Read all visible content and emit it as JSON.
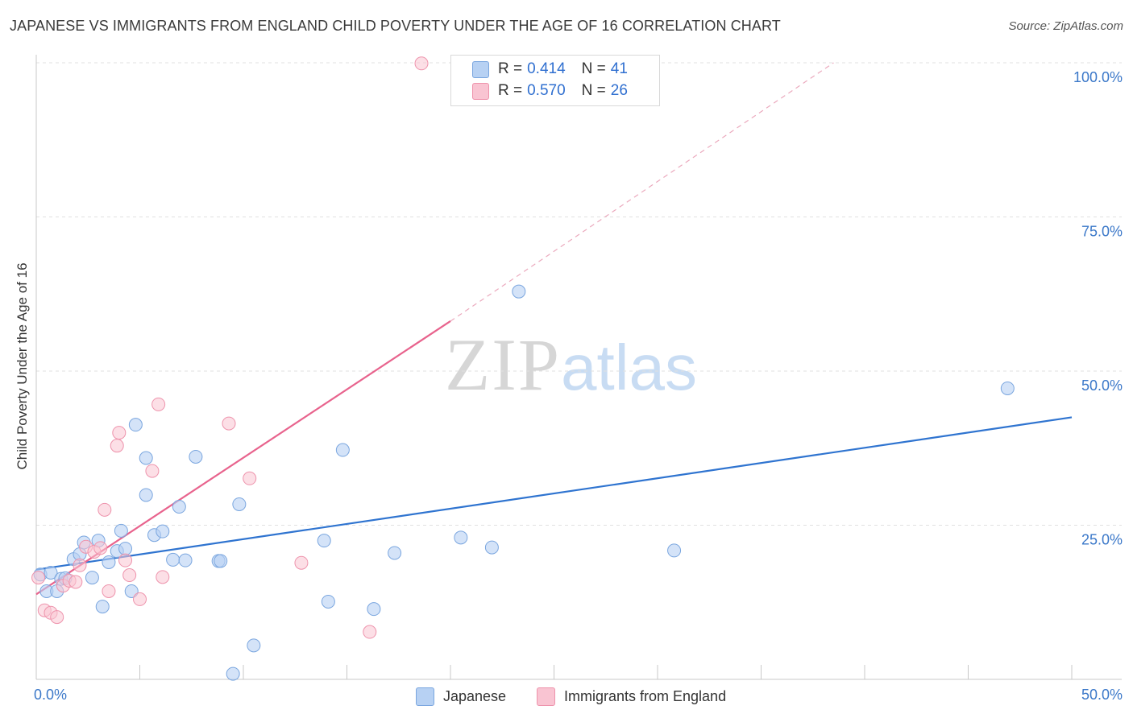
{
  "header": {
    "title": "JAPANESE VS IMMIGRANTS FROM ENGLAND CHILD POVERTY UNDER THE AGE OF 16 CORRELATION CHART",
    "source": "Source: ZipAtlas.com"
  },
  "watermark": {
    "zip": "ZIP",
    "atlas": "atlas"
  },
  "legend_top": {
    "rows": [
      {
        "r_label": "R = ",
        "r_value": "0.414",
        "n_label": "N = ",
        "n_value": "41"
      },
      {
        "r_label": "R = ",
        "r_value": "0.570",
        "n_label": "N = ",
        "n_value": "26"
      }
    ]
  },
  "legend_bottom": {
    "items": [
      "Japanese",
      "Immigrants from England"
    ]
  },
  "colors": {
    "japanese_fill": "#b7d1f3",
    "japanese_stroke": "#7aa6df",
    "japanese_line": "#2f74d0",
    "england_fill": "#f9c4d2",
    "england_stroke": "#ee93ac",
    "england_line": "#e8638d",
    "grid": "#e0e0e0",
    "axis_text": "#3b78c9"
  },
  "chart_data": {
    "type": "scatter",
    "title": "JAPANESE VS IMMIGRANTS FROM ENGLAND CHILD POVERTY UNDER THE AGE OF 16 CORRELATION CHART",
    "xlabel": "",
    "ylabel": "Child Poverty Under the Age of 16",
    "xlim": [
      0,
      50
    ],
    "ylim": [
      0,
      100
    ],
    "x_tick_labels": [
      "0.0%",
      "50.0%"
    ],
    "y_ticks": [
      25,
      50,
      75,
      100
    ],
    "y_tick_labels": [
      "25.0%",
      "50.0%",
      "75.0%",
      "100.0%"
    ],
    "grid": "horizontal dashed",
    "legend_position": "top-center",
    "series": [
      {
        "name": "Japanese",
        "R": 0.414,
        "N": 41,
        "trend": {
          "x": [
            0,
            50
          ],
          "y": [
            17.8,
            42.5
          ]
        },
        "points": [
          [
            0.2,
            17.0
          ],
          [
            0.5,
            14.3
          ],
          [
            0.7,
            17.3
          ],
          [
            1.0,
            14.3
          ],
          [
            1.2,
            16.3
          ],
          [
            1.4,
            16.4
          ],
          [
            1.8,
            19.5
          ],
          [
            2.1,
            20.3
          ],
          [
            2.3,
            22.2
          ],
          [
            2.7,
            16.5
          ],
          [
            3.0,
            22.5
          ],
          [
            3.2,
            11.8
          ],
          [
            3.5,
            19.0
          ],
          [
            3.9,
            20.8
          ],
          [
            4.1,
            24.1
          ],
          [
            4.3,
            21.2
          ],
          [
            4.6,
            14.3
          ],
          [
            4.8,
            41.3
          ],
          [
            5.3,
            35.9
          ],
          [
            5.3,
            29.9
          ],
          [
            5.7,
            23.4
          ],
          [
            6.1,
            24.0
          ],
          [
            6.6,
            19.4
          ],
          [
            6.9,
            28.0
          ],
          [
            7.2,
            19.3
          ],
          [
            7.7,
            36.1
          ],
          [
            8.8,
            19.2
          ],
          [
            8.9,
            19.2
          ],
          [
            9.5,
            0.9
          ],
          [
            9.8,
            28.4
          ],
          [
            10.5,
            5.5
          ],
          [
            13.9,
            22.5
          ],
          [
            14.1,
            12.6
          ],
          [
            14.8,
            37.2
          ],
          [
            16.3,
            11.4
          ],
          [
            17.3,
            20.5
          ],
          [
            20.5,
            23.0
          ],
          [
            22.0,
            21.4
          ],
          [
            23.3,
            62.9
          ],
          [
            30.8,
            20.9
          ],
          [
            46.9,
            47.2
          ]
        ]
      },
      {
        "name": "Immigrants from England",
        "R": 0.57,
        "N": 26,
        "trend": {
          "x": [
            0,
            20
          ],
          "y": [
            13.8,
            58.1
          ]
        },
        "trend_extension": {
          "x": [
            20,
            38.5
          ],
          "y": [
            58.1,
            100.0
          ]
        },
        "points": [
          [
            0.1,
            16.5
          ],
          [
            0.4,
            11.2
          ],
          [
            0.7,
            10.8
          ],
          [
            1.0,
            10.1
          ],
          [
            1.3,
            15.2
          ],
          [
            1.6,
            16.0
          ],
          [
            1.9,
            15.8
          ],
          [
            2.1,
            18.5
          ],
          [
            2.4,
            21.5
          ],
          [
            2.8,
            20.7
          ],
          [
            3.1,
            21.3
          ],
          [
            3.3,
            27.5
          ],
          [
            3.5,
            14.3
          ],
          [
            3.9,
            37.9
          ],
          [
            4.0,
            40.0
          ],
          [
            4.3,
            19.3
          ],
          [
            4.5,
            16.9
          ],
          [
            5.0,
            13.0
          ],
          [
            5.6,
            33.8
          ],
          [
            5.9,
            44.6
          ],
          [
            6.1,
            16.6
          ],
          [
            9.3,
            41.5
          ],
          [
            10.3,
            32.6
          ],
          [
            12.8,
            18.9
          ],
          [
            16.1,
            7.7
          ],
          [
            18.6,
            99.9
          ]
        ]
      }
    ]
  }
}
